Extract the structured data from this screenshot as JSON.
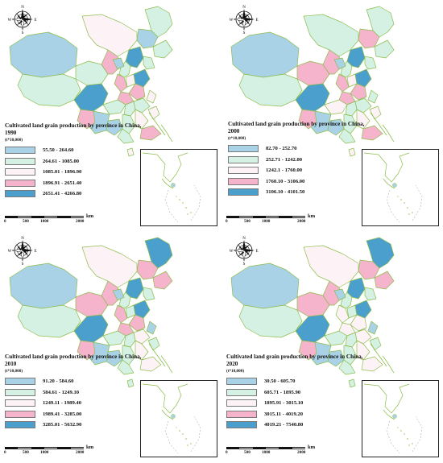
{
  "panels": [
    {
      "title": "Cultivated land grain production by province in China, 1990",
      "unit": "(t*10,000)",
      "legend": [
        {
          "range": "55.50 - 264.60",
          "color": "#a9d2e6"
        },
        {
          "range": "264.61 - 1085.00",
          "color": "#d4f1e4"
        },
        {
          "range": "1085.01 - 1896.90",
          "color": "#fdf3f7"
        },
        {
          "range": "1896.91 - 2651.40",
          "color": "#f5b3cc"
        },
        {
          "range": "2651.41 - 4266.80",
          "color": "#4a9fcc"
        }
      ],
      "scale": {
        "unit": "km",
        "ticks": [
          "0",
          "500",
          "1000",
          "2000"
        ]
      },
      "compass": {
        "n": "N",
        "s": "S",
        "e": "E",
        "w": "W"
      }
    },
    {
      "title": "Cultivated land grain production by province in China, 2000",
      "unit": "(t*10,000)",
      "legend": [
        {
          "range": "82.70 - 252.70",
          "color": "#a9d2e6"
        },
        {
          "range": "252.71 - 1242.00",
          "color": "#d4f1e4"
        },
        {
          "range": "1242.1 - 1760.00",
          "color": "#fdf3f7"
        },
        {
          "range": "1760.10 - 3106.00",
          "color": "#f5b3cc"
        },
        {
          "range": "3106.10 - 4101.50",
          "color": "#4a9fcc"
        }
      ],
      "scale": {
        "unit": "km",
        "ticks": [
          "0",
          "500",
          "1000",
          "2000"
        ]
      },
      "compass": {
        "n": "N",
        "s": "S",
        "e": "E",
        "w": "W"
      }
    },
    {
      "title": "Cultivated land grain production by province in China, 2010",
      "unit": "(t*10,000)",
      "legend": [
        {
          "range": "91.20 - 584.60",
          "color": "#a9d2e6"
        },
        {
          "range": "584.61 - 1249.10",
          "color": "#d4f1e4"
        },
        {
          "range": "1249.11 - 1989.40",
          "color": "#fdf3f7"
        },
        {
          "range": "1989.41 - 3285.00",
          "color": "#f5b3cc"
        },
        {
          "range": "3285.01 - 5632.90",
          "color": "#4a9fcc"
        }
      ],
      "scale": {
        "unit": "km",
        "ticks": [
          "0",
          "500",
          "1000",
          "2000"
        ]
      },
      "compass": {
        "n": "N",
        "s": "S",
        "e": "E",
        "w": "W"
      }
    },
    {
      "title": "Cultivated land grain production by province in China, 2020",
      "unit": "(t*10,000)",
      "legend": [
        {
          "range": "30.50 - 605.70",
          "color": "#a9d2e6"
        },
        {
          "range": "605.71 - 1895.90",
          "color": "#d4f1e4"
        },
        {
          "range": "1895.91 - 3015.10",
          "color": "#fdf3f7"
        },
        {
          "range": "3015.11 - 4019.20",
          "color": "#f5b3cc"
        },
        {
          "range": "4019.21 - 7540.80",
          "color": "#4a9fcc"
        }
      ],
      "scale": {
        "unit": "km",
        "ticks": [
          "0",
          "500",
          "1000",
          "2000"
        ]
      },
      "compass": {
        "n": "N",
        "s": "S",
        "e": "E",
        "w": "W"
      }
    }
  ],
  "map_classes": [
    [
      "c2",
      "c1",
      "c2",
      "c3",
      "c1",
      "c2",
      "c4",
      "c2",
      "c2",
      "c5",
      "c5",
      "c3",
      "c4",
      "c5",
      "c2",
      "c4",
      "c4",
      "c2",
      "c3",
      "c2",
      "c2",
      "c1",
      "c2",
      "c3",
      "c3",
      "c4",
      "c2",
      "c1",
      "c4",
      "c1",
      "c3"
    ],
    [
      "c2",
      "c4",
      "c2",
      "c2",
      "c1",
      "c4",
      "c4",
      "c2",
      "c2",
      "c5",
      "c5",
      "c3",
      "c4",
      "c5",
      "c2",
      "c4",
      "c4",
      "c2",
      "c2",
      "c3",
      "c2",
      "c1",
      "c2",
      "c3",
      "c3",
      "c4",
      "c2",
      "c1",
      "c4",
      "c1",
      "c3"
    ],
    [
      "c5",
      "c4",
      "c4",
      "c3",
      "c1",
      "c4",
      "c4",
      "c2",
      "c2",
      "c5",
      "c5",
      "c2",
      "c4",
      "c5",
      "c2",
      "c4",
      "c4",
      "c3",
      "c1",
      "c2",
      "c2",
      "c1",
      "c2",
      "c3",
      "c2",
      "c3",
      "c2",
      "c1",
      "c4",
      "c1",
      "c2"
    ],
    [
      "c5",
      "c4",
      "c4",
      "c3",
      "c1",
      "c4",
      "c4",
      "c2",
      "c2",
      "c5",
      "c5",
      "c2",
      "c3",
      "c5",
      "c2",
      "c3",
      "c3",
      "c3",
      "c1",
      "c2",
      "c2",
      "c1",
      "c2",
      "c3",
      "c2",
      "c3",
      "c2",
      "c1",
      "c4",
      "c1",
      "c2"
    ]
  ]
}
